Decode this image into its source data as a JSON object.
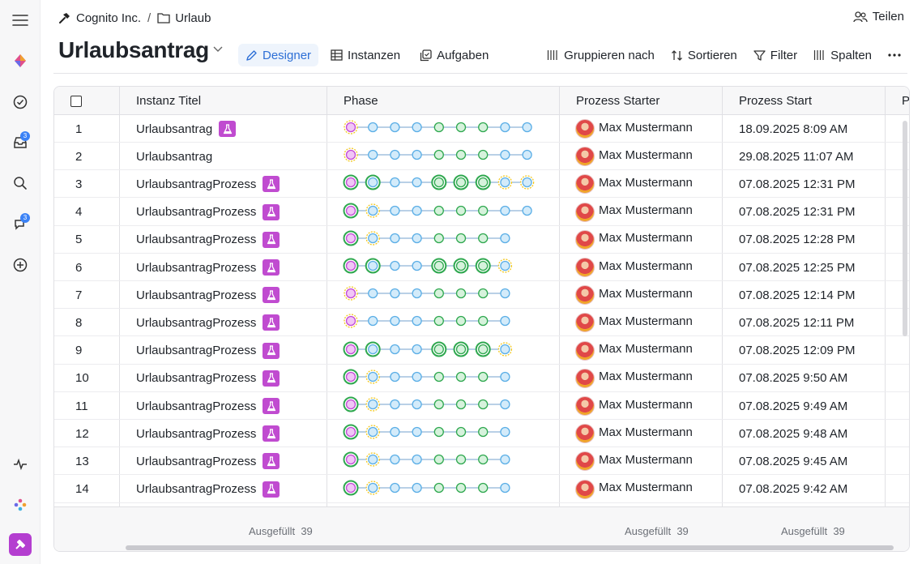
{
  "breadcrumb": {
    "workspace": "Cognito Inc.",
    "folder": "Urlaub"
  },
  "share_label": "Teilen",
  "page_title": "Urlaubsantrag",
  "view_tabs": [
    {
      "label": "Designer",
      "icon": "pencil-icon",
      "active": true
    },
    {
      "label": "Instanzen",
      "icon": "table-icon",
      "active": false
    },
    {
      "label": "Aufgaben",
      "icon": "tasks-icon",
      "active": false
    }
  ],
  "tools": {
    "group": "Gruppieren nach",
    "sort": "Sortieren",
    "filter": "Filter",
    "columns": "Spalten"
  },
  "rail_badges": {
    "inbox": "3",
    "chat": "3"
  },
  "columns": {
    "title": "Instanz Titel",
    "phase": "Phase",
    "starter": "Prozess Starter",
    "start": "Prozess Start",
    "next": "P"
  },
  "rows": [
    {
      "num": "1",
      "title": "Urlaubsantrag",
      "badge": true,
      "starter": "Max Mustermann",
      "start": "18.09.2025 8:09 AM",
      "phase": "vbbbgggbb"
    },
    {
      "num": "2",
      "title": "Urlaubsantrag",
      "badge": false,
      "starter": "Max Mustermann",
      "start": "29.08.2025 11:07 AM",
      "phase": "vbbbgggbb"
    },
    {
      "num": "3",
      "title": "UrlaubsantragProzess",
      "badge": true,
      "starter": "Max Mustermann",
      "start": "07.08.2025 12:31 PM",
      "phase": "DEbbGGGYY"
    },
    {
      "num": "4",
      "title": "UrlaubsantragProzess",
      "badge": true,
      "starter": "Max Mustermann",
      "start": "07.08.2025 12:31 PM",
      "phase": "DYbbgggbb"
    },
    {
      "num": "5",
      "title": "UrlaubsantragProzess",
      "badge": true,
      "starter": "Max Mustermann",
      "start": "07.08.2025 12:28 PM",
      "phase": "DYbbgggb"
    },
    {
      "num": "6",
      "title": "UrlaubsantragProzess",
      "badge": true,
      "starter": "Max Mustermann",
      "start": "07.08.2025 12:25 PM",
      "phase": "DEbbGGGY"
    },
    {
      "num": "7",
      "title": "UrlaubsantragProzess",
      "badge": true,
      "starter": "Max Mustermann",
      "start": "07.08.2025 12:14 PM",
      "phase": "vbbbgggb"
    },
    {
      "num": "8",
      "title": "UrlaubsantragProzess",
      "badge": true,
      "starter": "Max Mustermann",
      "start": "07.08.2025 12:11 PM",
      "phase": "vbbbgggb"
    },
    {
      "num": "9",
      "title": "UrlaubsantragProzess",
      "badge": true,
      "starter": "Max Mustermann",
      "start": "07.08.2025 12:09 PM",
      "phase": "DEbbGGGY"
    },
    {
      "num": "10",
      "title": "UrlaubsantragProzess",
      "badge": true,
      "starter": "Max Mustermann",
      "start": "07.08.2025 9:50 AM",
      "phase": "DYbbgggb"
    },
    {
      "num": "11",
      "title": "UrlaubsantragProzess",
      "badge": true,
      "starter": "Max Mustermann",
      "start": "07.08.2025 9:49 AM",
      "phase": "DYbbgggb"
    },
    {
      "num": "12",
      "title": "UrlaubsantragProzess",
      "badge": true,
      "starter": "Max Mustermann",
      "start": "07.08.2025 9:48 AM",
      "phase": "DYbbgggb"
    },
    {
      "num": "13",
      "title": "UrlaubsantragProzess",
      "badge": true,
      "starter": "Max Mustermann",
      "start": "07.08.2025 9:45 AM",
      "phase": "DYbbgggb"
    },
    {
      "num": "14",
      "title": "UrlaubsantragProzess",
      "badge": true,
      "starter": "Max Mustermann",
      "start": "07.08.2025 9:42 AM",
      "phase": "DYbbgggb"
    }
  ],
  "footer": {
    "title_label": "Ausgefüllt",
    "title_count": "39",
    "starter_label": "Ausgefüllt",
    "starter_count": "39",
    "start_label": "Ausgefüllt",
    "start_count": "39"
  },
  "colors": {
    "accent": "#2d6fd6",
    "badge": "#c04bd0",
    "node_blue": "#5aaee6",
    "node_green": "#2fa84f",
    "node_violet": "#c24ad6",
    "node_yellow": "#f2c81e"
  }
}
